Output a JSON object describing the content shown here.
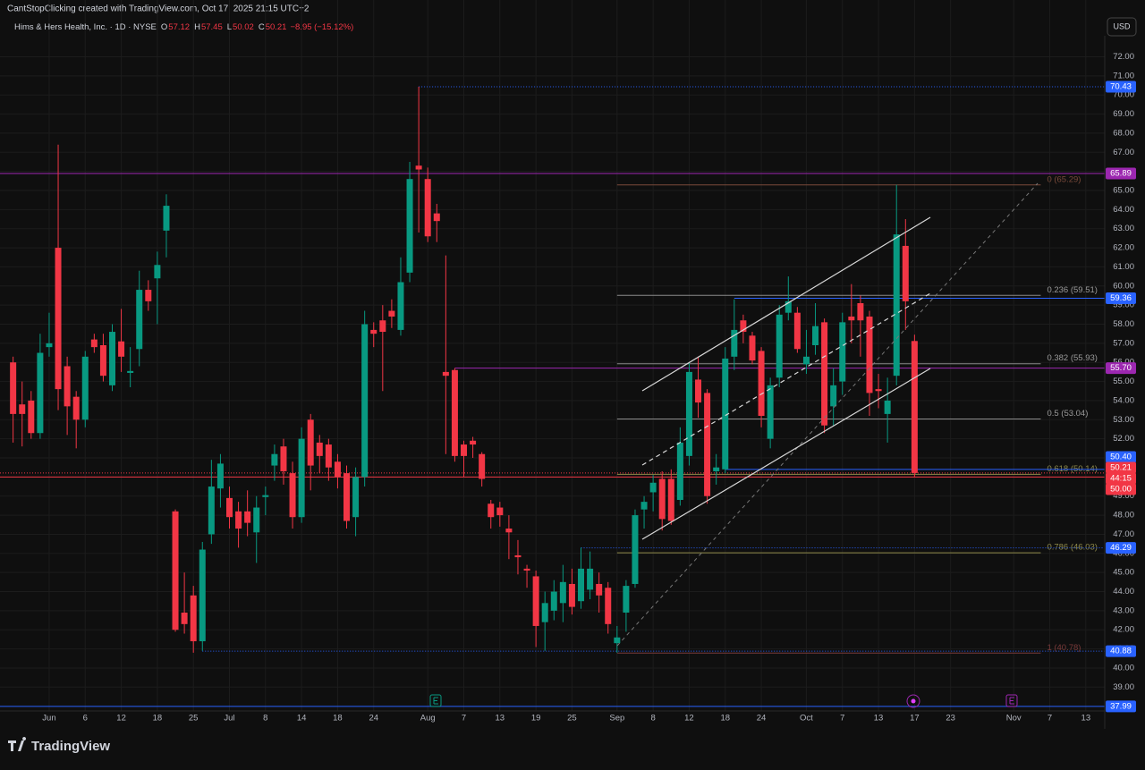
{
  "top_bar": {
    "text": "CantStopClicking created with TradingView.com, Oct 17, 2025 21:15 UTC+2"
  },
  "currency_button": "USD",
  "footer": {
    "logo": "TradingView"
  },
  "chart_data": {
    "type": "candlestick",
    "title": "Hims & Hers Health, Inc. · 1D · NYSE",
    "legend": {
      "open_label": "O",
      "open": "57.12",
      "high_label": "H",
      "high": "57.45",
      "low_label": "L",
      "low": "50.02",
      "close_label": "C",
      "close": "50.21",
      "change": "−8.95 (−15.12%)"
    },
    "up_color": "#089981",
    "down_color": "#f23645",
    "grid": true,
    "xlim": [
      -4.66,
      117.1
    ],
    "ylim": [
      37.75,
      73.1
    ],
    "xticks": [
      {
        "value": 0,
        "label": "Jun"
      },
      {
        "value": 4,
        "label": "6"
      },
      {
        "value": 8,
        "label": "12"
      },
      {
        "value": 12,
        "label": "18"
      },
      {
        "value": 16,
        "label": "25"
      },
      {
        "value": 20,
        "label": "Jul"
      },
      {
        "value": 24,
        "label": "8"
      },
      {
        "value": 28,
        "label": "14"
      },
      {
        "value": 32,
        "label": "18"
      },
      {
        "value": 36,
        "label": "24"
      },
      {
        "value": 42,
        "label": "Aug"
      },
      {
        "value": 46,
        "label": "7"
      },
      {
        "value": 50,
        "label": "13"
      },
      {
        "value": 54,
        "label": "19"
      },
      {
        "value": 58,
        "label": "25"
      },
      {
        "value": 63,
        "label": "Sep"
      },
      {
        "value": 67,
        "label": "8"
      },
      {
        "value": 71,
        "label": "12"
      },
      {
        "value": 75,
        "label": "18"
      },
      {
        "value": 79,
        "label": "24"
      },
      {
        "value": 84,
        "label": "Oct"
      },
      {
        "value": 88,
        "label": "7"
      },
      {
        "value": 92,
        "label": "13"
      },
      {
        "value": 96,
        "label": "17"
      },
      {
        "value": 100,
        "label": "23"
      },
      {
        "value": 107,
        "label": "Nov"
      },
      {
        "value": 111,
        "label": "7"
      },
      {
        "value": 115,
        "label": "13"
      }
    ],
    "yticks": [
      {
        "value": 39,
        "label": "39.00"
      },
      {
        "value": 40,
        "label": "40.00"
      },
      {
        "value": 41,
        "label": "41.00"
      },
      {
        "value": 42,
        "label": "42.00"
      },
      {
        "value": 43,
        "label": "43.00"
      },
      {
        "value": 44,
        "label": "44.00"
      },
      {
        "value": 45,
        "label": "45.00"
      },
      {
        "value": 46,
        "label": "46.00"
      },
      {
        "value": 47,
        "label": "47.00"
      },
      {
        "value": 48,
        "label": "48.00"
      },
      {
        "value": 49,
        "label": "49.00"
      },
      {
        "value": 50,
        "label": "50.00"
      },
      {
        "value": 51,
        "label": "51.00"
      },
      {
        "value": 52,
        "label": "52.00"
      },
      {
        "value": 53,
        "label": "53.00"
      },
      {
        "value": 54,
        "label": "54.00"
      },
      {
        "value": 55,
        "label": "55.00"
      },
      {
        "value": 56,
        "label": "56.00"
      },
      {
        "value": 57,
        "label": "57.00"
      },
      {
        "value": 58,
        "label": "58.00"
      },
      {
        "value": 59,
        "label": "59.00"
      },
      {
        "value": 60,
        "label": "60.00"
      },
      {
        "value": 61,
        "label": "61.00"
      },
      {
        "value": 62,
        "label": "62.00"
      },
      {
        "value": 63,
        "label": "63.00"
      },
      {
        "value": 64,
        "label": "64.00"
      },
      {
        "value": 65,
        "label": "65.00"
      },
      {
        "value": 66,
        "label": "66.00"
      },
      {
        "value": 67,
        "label": "67.00"
      },
      {
        "value": 68,
        "label": "68.00"
      },
      {
        "value": 69,
        "label": "69.00"
      },
      {
        "value": 70,
        "label": "70.00"
      },
      {
        "value": 71,
        "label": "71.00"
      },
      {
        "value": 72,
        "label": "72.00"
      }
    ],
    "candles": [
      {
        "x": -4,
        "open": 56.0,
        "high": 56.3,
        "low": 51.8,
        "close": 53.3
      },
      {
        "x": -3,
        "open": 53.8,
        "high": 55.0,
        "low": 51.6,
        "close": 53.3
      },
      {
        "x": -2,
        "open": 54.0,
        "high": 54.5,
        "low": 52.0,
        "close": 52.3
      },
      {
        "x": -1,
        "open": 52.3,
        "high": 57.5,
        "low": 52.0,
        "close": 56.5
      },
      {
        "x": 0,
        "open": 56.8,
        "high": 58.6,
        "low": 56.3,
        "close": 57.0
      },
      {
        "x": 1,
        "open": 62.0,
        "high": 67.4,
        "low": 53.5,
        "close": 54.6
      },
      {
        "x": 2,
        "open": 55.8,
        "high": 56.3,
        "low": 52.2,
        "close": 53.7
      },
      {
        "x": 3,
        "open": 54.2,
        "high": 54.5,
        "low": 51.5,
        "close": 53.0
      },
      {
        "x": 4,
        "open": 53.0,
        "high": 56.6,
        "low": 52.6,
        "close": 56.3
      },
      {
        "x": 5,
        "open": 57.2,
        "high": 57.5,
        "low": 56.5,
        "close": 56.8
      },
      {
        "x": 6,
        "open": 56.9,
        "high": 57.5,
        "low": 55.0,
        "close": 55.3
      },
      {
        "x": 7,
        "open": 54.8,
        "high": 58.0,
        "low": 54.5,
        "close": 57.6
      },
      {
        "x": 8,
        "open": 57.1,
        "high": 58.8,
        "low": 55.5,
        "close": 56.3
      },
      {
        "x": 9,
        "open": 55.45,
        "high": 56.8,
        "low": 54.7,
        "close": 55.55
      },
      {
        "x": 10,
        "open": 56.7,
        "high": 60.8,
        "low": 55.8,
        "close": 59.8
      },
      {
        "x": 11,
        "open": 59.8,
        "high": 60.3,
        "low": 58.7,
        "close": 59.2
      },
      {
        "x": 12,
        "open": 60.4,
        "high": 61.8,
        "low": 58.0,
        "close": 61.1
      },
      {
        "x": 13,
        "open": 62.9,
        "high": 64.8,
        "low": 61.5,
        "close": 64.2
      },
      {
        "x": 14,
        "open": 48.2,
        "high": 48.3,
        "low": 41.9,
        "close": 42.0
      },
      {
        "x": 15,
        "open": 42.9,
        "high": 45.0,
        "low": 41.8,
        "close": 42.3
      },
      {
        "x": 16,
        "open": 43.8,
        "high": 44.3,
        "low": 40.8,
        "close": 41.4
      },
      {
        "x": 17,
        "open": 41.4,
        "high": 46.6,
        "low": 40.9,
        "close": 46.2
      },
      {
        "x": 18,
        "open": 47.0,
        "high": 50.9,
        "low": 46.5,
        "close": 49.5
      },
      {
        "x": 19,
        "open": 49.4,
        "high": 51.2,
        "low": 48.4,
        "close": 50.7
      },
      {
        "x": 20,
        "open": 48.9,
        "high": 49.5,
        "low": 47.3,
        "close": 47.9
      },
      {
        "x": 21,
        "open": 48.2,
        "high": 48.7,
        "low": 46.3,
        "close": 47.3
      },
      {
        "x": 22,
        "open": 48.2,
        "high": 49.3,
        "low": 46.9,
        "close": 47.6
      },
      {
        "x": 23,
        "open": 47.1,
        "high": 49.0,
        "low": 45.5,
        "close": 48.4
      },
      {
        "x": 24,
        "open": 48.95,
        "high": 49.5,
        "low": 48.0,
        "close": 49.05
      },
      {
        "x": 25,
        "open": 50.6,
        "high": 51.7,
        "low": 49.8,
        "close": 51.2
      },
      {
        "x": 26,
        "open": 51.6,
        "high": 52.0,
        "low": 49.6,
        "close": 50.3
      },
      {
        "x": 27,
        "open": 50.2,
        "high": 50.8,
        "low": 47.3,
        "close": 47.9
      },
      {
        "x": 28,
        "open": 47.9,
        "high": 52.6,
        "low": 47.6,
        "close": 52.0
      },
      {
        "x": 29,
        "open": 53.0,
        "high": 53.3,
        "low": 49.3,
        "close": 50.6
      },
      {
        "x": 30,
        "open": 51.8,
        "high": 52.2,
        "low": 50.2,
        "close": 51.1
      },
      {
        "x": 31,
        "open": 51.7,
        "high": 52.0,
        "low": 49.8,
        "close": 50.5
      },
      {
        "x": 32,
        "open": 50.8,
        "high": 51.2,
        "low": 49.4,
        "close": 50.0
      },
      {
        "x": 33,
        "open": 50.2,
        "high": 50.6,
        "low": 47.3,
        "close": 47.7
      },
      {
        "x": 34,
        "open": 47.9,
        "high": 50.5,
        "low": 46.9,
        "close": 50.0
      },
      {
        "x": 35,
        "open": 50.0,
        "high": 58.7,
        "low": 49.5,
        "close": 58.0
      },
      {
        "x": 36,
        "open": 57.7,
        "high": 58.1,
        "low": 56.8,
        "close": 57.5
      },
      {
        "x": 37,
        "open": 58.2,
        "high": 59.0,
        "low": 54.5,
        "close": 57.6
      },
      {
        "x": 38,
        "open": 58.7,
        "high": 59.3,
        "low": 57.8,
        "close": 58.4
      },
      {
        "x": 39,
        "open": 57.7,
        "high": 61.5,
        "low": 57.4,
        "close": 60.2
      },
      {
        "x": 40,
        "open": 60.7,
        "high": 66.5,
        "low": 60.2,
        "close": 65.6
      },
      {
        "x": 41,
        "open": 66.3,
        "high": 70.43,
        "low": 62.8,
        "close": 66.1
      },
      {
        "x": 42,
        "open": 65.6,
        "high": 66.2,
        "low": 62.3,
        "close": 62.6
      },
      {
        "x": 43,
        "open": 63.8,
        "high": 64.3,
        "low": 62.3,
        "close": 63.4
      },
      {
        "x": 44,
        "open": 55.5,
        "high": 61.6,
        "low": 51.2,
        "close": 55.3
      },
      {
        "x": 45,
        "open": 55.6,
        "high": 55.7,
        "low": 50.8,
        "close": 51.1
      },
      {
        "x": 46,
        "open": 51.7,
        "high": 51.9,
        "low": 50.0,
        "close": 51.1
      },
      {
        "x": 47,
        "open": 51.9,
        "high": 52.1,
        "low": 51.0,
        "close": 51.7
      },
      {
        "x": 48,
        "open": 51.2,
        "high": 51.3,
        "low": 49.5,
        "close": 49.9
      },
      {
        "x": 49,
        "open": 48.6,
        "high": 48.8,
        "low": 47.3,
        "close": 47.9
      },
      {
        "x": 50,
        "open": 48.4,
        "high": 48.7,
        "low": 47.4,
        "close": 48.0
      },
      {
        "x": 51,
        "open": 47.3,
        "high": 48.0,
        "low": 45.7,
        "close": 47.1
      },
      {
        "x": 52,
        "open": 45.9,
        "high": 46.7,
        "low": 44.9,
        "close": 45.8
      },
      {
        "x": 53,
        "open": 45.2,
        "high": 45.4,
        "low": 44.2,
        "close": 45.1
      },
      {
        "x": 54,
        "open": 44.8,
        "high": 45.1,
        "low": 41.1,
        "close": 42.2
      },
      {
        "x": 55,
        "open": 42.4,
        "high": 44.0,
        "low": 40.9,
        "close": 43.4
      },
      {
        "x": 56,
        "open": 43.0,
        "high": 44.6,
        "low": 42.5,
        "close": 44.0
      },
      {
        "x": 57,
        "open": 43.4,
        "high": 45.4,
        "low": 42.4,
        "close": 44.5
      },
      {
        "x": 58,
        "open": 44.4,
        "high": 45.2,
        "low": 42.8,
        "close": 43.2
      },
      {
        "x": 59,
        "open": 43.5,
        "high": 46.3,
        "low": 43.1,
        "close": 45.2
      },
      {
        "x": 60,
        "open": 44.1,
        "high": 46.1,
        "low": 43.6,
        "close": 45.2
      },
      {
        "x": 61,
        "open": 44.4,
        "high": 45.0,
        "low": 42.9,
        "close": 43.8
      },
      {
        "x": 62,
        "open": 44.2,
        "high": 44.5,
        "low": 41.8,
        "close": 42.3
      },
      {
        "x": 63,
        "open": 41.3,
        "high": 42.2,
        "low": 40.8,
        "close": 41.6
      },
      {
        "x": 64,
        "open": 42.9,
        "high": 44.6,
        "low": 41.9,
        "close": 44.3
      },
      {
        "x": 65,
        "open": 44.4,
        "high": 48.3,
        "low": 44.2,
        "close": 48.0
      },
      {
        "x": 66,
        "open": 48.3,
        "high": 49.0,
        "low": 47.3,
        "close": 48.7
      },
      {
        "x": 67,
        "open": 49.2,
        "high": 50.1,
        "low": 48.2,
        "close": 49.7
      },
      {
        "x": 68,
        "open": 49.9,
        "high": 50.3,
        "low": 47.2,
        "close": 47.8
      },
      {
        "x": 69,
        "open": 49.9,
        "high": 50.4,
        "low": 47.5,
        "close": 47.7
      },
      {
        "x": 70,
        "open": 48.8,
        "high": 52.6,
        "low": 48.5,
        "close": 51.8
      },
      {
        "x": 71,
        "open": 51.1,
        "high": 56.0,
        "low": 50.6,
        "close": 55.5
      },
      {
        "x": 72,
        "open": 55.1,
        "high": 56.3,
        "low": 53.1,
        "close": 53.9
      },
      {
        "x": 73,
        "open": 54.4,
        "high": 54.6,
        "low": 48.6,
        "close": 49.0
      },
      {
        "x": 74,
        "open": 50.3,
        "high": 51.2,
        "low": 49.6,
        "close": 50.5
      },
      {
        "x": 75,
        "open": 50.4,
        "high": 56.8,
        "low": 50.2,
        "close": 56.2
      },
      {
        "x": 76,
        "open": 56.3,
        "high": 59.3,
        "low": 55.6,
        "close": 57.7
      },
      {
        "x": 77,
        "open": 58.2,
        "high": 58.5,
        "low": 57.0,
        "close": 57.6
      },
      {
        "x": 78,
        "open": 57.4,
        "high": 57.6,
        "low": 55.9,
        "close": 56.1
      },
      {
        "x": 79,
        "open": 56.6,
        "high": 56.8,
        "low": 52.6,
        "close": 53.2
      },
      {
        "x": 80,
        "open": 52.0,
        "high": 55.2,
        "low": 51.5,
        "close": 54.8
      },
      {
        "x": 81,
        "open": 55.2,
        "high": 59.0,
        "low": 54.7,
        "close": 58.5
      },
      {
        "x": 82,
        "open": 58.6,
        "high": 60.5,
        "low": 58.2,
        "close": 59.2
      },
      {
        "x": 83,
        "open": 58.6,
        "high": 58.9,
        "low": 56.5,
        "close": 56.7
      },
      {
        "x": 84,
        "open": 55.9,
        "high": 57.7,
        "low": 55.4,
        "close": 56.3
      },
      {
        "x": 85,
        "open": 56.9,
        "high": 59.1,
        "low": 56.4,
        "close": 57.9
      },
      {
        "x": 86,
        "open": 58.1,
        "high": 58.3,
        "low": 52.3,
        "close": 52.7
      },
      {
        "x": 87,
        "open": 53.7,
        "high": 55.7,
        "low": 52.7,
        "close": 54.8
      },
      {
        "x": 88,
        "open": 55.0,
        "high": 58.6,
        "low": 54.3,
        "close": 58.1
      },
      {
        "x": 89,
        "open": 58.4,
        "high": 60.1,
        "low": 57.0,
        "close": 58.2
      },
      {
        "x": 90,
        "open": 59.1,
        "high": 59.5,
        "low": 56.3,
        "close": 58.2
      },
      {
        "x": 91,
        "open": 58.4,
        "high": 58.7,
        "low": 53.2,
        "close": 54.4
      },
      {
        "x": 92,
        "open": 54.6,
        "high": 55.4,
        "low": 53.6,
        "close": 54.5
      },
      {
        "x": 93,
        "open": 53.3,
        "high": 55.2,
        "low": 51.8,
        "close": 54.0
      },
      {
        "x": 94,
        "open": 55.3,
        "high": 65.3,
        "low": 54.8,
        "close": 62.7
      },
      {
        "x": 95,
        "open": 62.1,
        "high": 63.5,
        "low": 57.7,
        "close": 59.2
      },
      {
        "x": 96,
        "open": 57.12,
        "high": 57.45,
        "low": 50.02,
        "close": 50.21
      }
    ],
    "levels": [
      {
        "value": 65.89,
        "label": "65.89",
        "color": "#9c27b0",
        "style": "solid",
        "from": null
      },
      {
        "value": 55.7,
        "label": "55.70",
        "color": "#9c27b0",
        "style": "solid",
        "from": 45
      },
      {
        "value": 70.43,
        "label": "70.43",
        "color": "#2962ff",
        "style": "dotted",
        "from": 41
      },
      {
        "value": 59.36,
        "label": "59.36",
        "color": "#2962ff",
        "style": "solid",
        "from": 76
      },
      {
        "value": 50.4,
        "label": "50.40",
        "color": "#2962ff",
        "style": "solid",
        "from": 75
      },
      {
        "value": 46.29,
        "label": "46.29",
        "color": "#2962ff",
        "style": "dotted",
        "from": 59
      },
      {
        "value": 40.88,
        "label": "40.88",
        "color": "#2962ff",
        "style": "dotted",
        "from": 17
      },
      {
        "value": 37.99,
        "label": "37.99",
        "color": "#2962ff",
        "style": "solid",
        "from": null
      },
      {
        "value": 50.21,
        "label": "50.21",
        "color": "#f23645",
        "style": "dotted",
        "from": null
      },
      {
        "value": 50.0,
        "label": "50.00",
        "color": "#f23645",
        "style": "solid",
        "from": null
      }
    ],
    "countdown": "44:15",
    "fib": {
      "from": 63,
      "to": 110,
      "levels": [
        {
          "value": 65.29,
          "label": "0 (65.29)",
          "color": "#7a4a3a"
        },
        {
          "value": 59.51,
          "label": "0.236 (59.51)",
          "color": "#8a8a8a"
        },
        {
          "value": 55.93,
          "label": "0.382 (55.93)",
          "color": "#8a8a8a"
        },
        {
          "value": 53.04,
          "label": "0.5 (53.04)",
          "color": "#8a8a8a"
        },
        {
          "value": 50.14,
          "label": "0.618 (50.14)",
          "color": "#8f8a4a"
        },
        {
          "value": 46.03,
          "label": "0.786 (46.03)",
          "color": "#8f8a4a"
        },
        {
          "value": 40.78,
          "label": "1 (40.78)",
          "color": "#7a3a3a"
        }
      ]
    }
  }
}
